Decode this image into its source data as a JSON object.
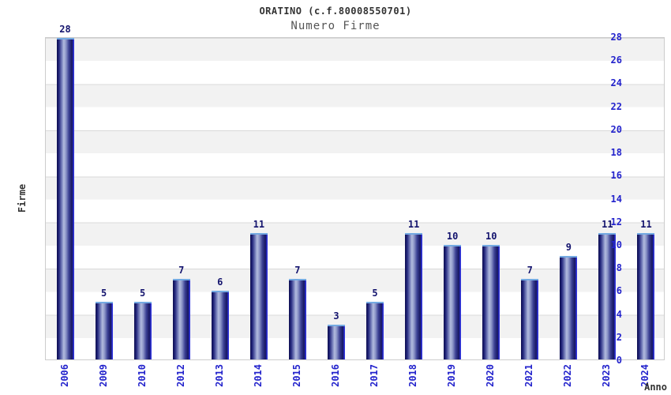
{
  "header": {
    "title": "ORATINO (c.f.80008550701)",
    "subtitle": "Numero Firme"
  },
  "chart_data": {
    "type": "bar",
    "title": "ORATINO (c.f.80008550701)",
    "subtitle": "Numero Firme",
    "xlabel": "Anno",
    "ylabel": "Firme",
    "categories": [
      "2006",
      "2009",
      "2010",
      "2012",
      "2013",
      "2014",
      "2015",
      "2016",
      "2017",
      "2018",
      "2019",
      "2020",
      "2021",
      "2022",
      "2023",
      "2024"
    ],
    "values": [
      28,
      5,
      5,
      7,
      6,
      11,
      7,
      3,
      5,
      11,
      10,
      10,
      7,
      9,
      11,
      11
    ],
    "ylim": [
      0,
      28
    ],
    "ytick_step": 2,
    "yticks": [
      "0",
      "2",
      "4",
      "6",
      "8",
      "10",
      "12",
      "14",
      "16",
      "18",
      "20",
      "22",
      "24",
      "26",
      "28"
    ],
    "grid": "horizontal alternating bands every 2 units, gray/white, gridlines at even values",
    "legend": "none",
    "colors": {
      "bar_dark": "#14145c",
      "bar_light": "#b2bbde",
      "bar_edge_right": "#3136e0",
      "bar_top_cap": "#74aae2",
      "tick_label": "#2323cc",
      "value_label": "#14146e",
      "band_gray": "#f2f2f2",
      "gridline": "#d9d9d9",
      "plot_border": "#cccccc",
      "title_color": "#333333",
      "subtitle_color": "#555555"
    }
  }
}
